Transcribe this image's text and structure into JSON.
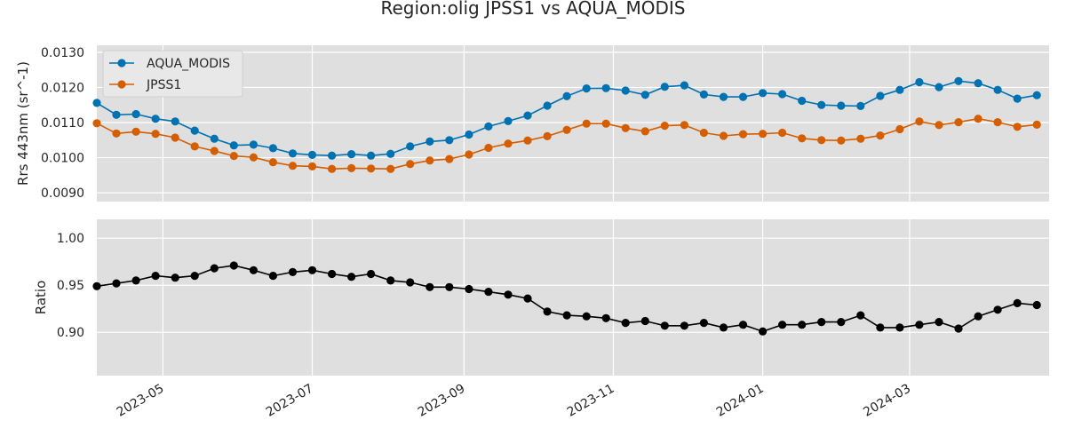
{
  "figure": {
    "title": "Region:olig JPSS1 vs AQUA_MODIS"
  },
  "chart_data": [
    {
      "type": "line",
      "panel": "top",
      "ylabel": "Rrs 443nm (sr^-1)",
      "xlabel": "",
      "ylim": [
        0.00875,
        0.0132
      ],
      "yticks": [
        "0.0090",
        "0.0100",
        "0.0110",
        "0.0120",
        "0.0130"
      ],
      "xlim": [
        "2023-04-04",
        "2024-04-27"
      ],
      "grid": true,
      "legend_placement": "top-left",
      "x": [
        "2023-04-04",
        "2023-04-12",
        "2023-04-20",
        "2023-04-28",
        "2023-05-06",
        "2023-05-14",
        "2023-05-22",
        "2023-05-30",
        "2023-06-07",
        "2023-06-15",
        "2023-06-23",
        "2023-07-01",
        "2023-07-09",
        "2023-07-17",
        "2023-07-25",
        "2023-08-02",
        "2023-08-10",
        "2023-08-18",
        "2023-08-26",
        "2023-09-03",
        "2023-09-11",
        "2023-09-19",
        "2023-09-27",
        "2023-10-05",
        "2023-10-13",
        "2023-10-21",
        "2023-10-29",
        "2023-11-06",
        "2023-11-14",
        "2023-11-22",
        "2023-11-30",
        "2023-12-08",
        "2023-12-16",
        "2023-12-24",
        "2024-01-01",
        "2024-01-09",
        "2024-01-17",
        "2024-01-25",
        "2024-02-02",
        "2024-02-10",
        "2024-02-18",
        "2024-02-26",
        "2024-03-05",
        "2024-03-13",
        "2024-03-21",
        "2024-03-29",
        "2024-04-06",
        "2024-04-14",
        "2024-04-22"
      ],
      "series": [
        {
          "name": "AQUA_MODIS",
          "color": "#0072b2",
          "values": [
            0.01156,
            0.01122,
            0.01124,
            0.01111,
            0.01103,
            0.01077,
            0.01054,
            0.01035,
            0.01037,
            0.01027,
            0.01012,
            0.01008,
            0.01006,
            0.0101,
            0.01006,
            0.01011,
            0.01032,
            0.01046,
            0.0105,
            0.01066,
            0.01089,
            0.01104,
            0.0112,
            0.01148,
            0.01175,
            0.01197,
            0.01198,
            0.01191,
            0.01179,
            0.01202,
            0.01206,
            0.0118,
            0.01173,
            0.01173,
            0.01184,
            0.01181,
            0.01162,
            0.0115,
            0.01148,
            0.01147,
            0.01176,
            0.01193,
            0.01215,
            0.01201,
            0.01218,
            0.01212,
            0.01193,
            0.01168,
            0.01178
          ]
        },
        {
          "name": "JPSS1",
          "color": "#d55e00",
          "values": [
            0.01098,
            0.01069,
            0.01074,
            0.01068,
            0.01057,
            0.01032,
            0.01019,
            0.01005,
            0.01001,
            0.00987,
            0.00977,
            0.00975,
            0.00968,
            0.0097,
            0.00969,
            0.00968,
            0.00982,
            0.00992,
            0.00996,
            0.01009,
            0.01028,
            0.0104,
            0.01049,
            0.01061,
            0.01079,
            0.01097,
            0.01097,
            0.01084,
            0.01075,
            0.01091,
            0.01093,
            0.01071,
            0.01062,
            0.01067,
            0.01068,
            0.01071,
            0.01055,
            0.0105,
            0.01049,
            0.01054,
            0.01063,
            0.01081,
            0.01103,
            0.01093,
            0.01101,
            0.01111,
            0.01101,
            0.01088,
            0.01094
          ]
        }
      ]
    },
    {
      "type": "line",
      "panel": "bottom",
      "ylabel": "Ratio",
      "xlabel": "",
      "ylim": [
        0.854,
        1.02
      ],
      "yticks": [
        "0.90",
        "0.95",
        "1.00"
      ],
      "xlim": [
        "2023-04-04",
        "2024-04-27"
      ],
      "xticks": [
        "2023-05",
        "2023-07",
        "2023-09",
        "2023-11",
        "2024-01",
        "2024-03"
      ],
      "grid": true,
      "series": [
        {
          "color": "#000000",
          "values": [
            0.949,
            0.952,
            0.955,
            0.96,
            0.958,
            0.96,
            0.968,
            0.971,
            0.966,
            0.96,
            0.964,
            0.966,
            0.962,
            0.959,
            0.962,
            0.955,
            0.953,
            0.948,
            0.948,
            0.946,
            0.943,
            0.94,
            0.936,
            0.922,
            0.918,
            0.917,
            0.915,
            0.91,
            0.912,
            0.907,
            0.907,
            0.91,
            0.905,
            0.908,
            0.901,
            0.908,
            0.908,
            0.911,
            0.911,
            0.918,
            0.905,
            0.905,
            0.908,
            0.911,
            0.904,
            0.917,
            0.924,
            0.931,
            0.929
          ]
        }
      ]
    }
  ],
  "x_tick_dates": [
    "2023-05-01",
    "2023-07-01",
    "2023-09-01",
    "2023-11-01",
    "2024-01-01",
    "2024-03-01"
  ]
}
